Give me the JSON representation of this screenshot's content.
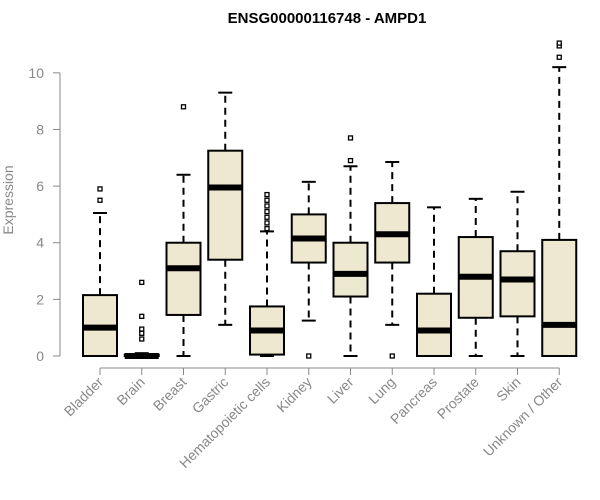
{
  "chart_data": {
    "type": "box",
    "title": "ENSG00000116748 - AMPD1",
    "ylabel": "Expression",
    "xlabel": "",
    "ylim": [
      0,
      11.3
    ],
    "yticks": [
      0,
      2,
      4,
      6,
      8,
      10
    ],
    "box_fill": "#efe8d0",
    "categories": [
      "Bladder",
      "Brain",
      "Breast",
      "Gastric",
      "Hematopoietic cells",
      "Kidney",
      "Liver",
      "Lung",
      "Pancreas",
      "Prostate",
      "Skin",
      "Unknown / Other"
    ],
    "boxes": [
      {
        "whisker_low": 0,
        "q1": 0,
        "median": 1.0,
        "q3": 2.15,
        "whisker_high": 5.05,
        "outliers": [
          5.5,
          5.9
        ]
      },
      {
        "whisker_low": 0,
        "q1": 0,
        "median": 0,
        "q3": 0.05,
        "whisker_high": 0.1,
        "outliers": [
          0.6,
          0.8,
          0.95,
          1.4,
          2.6
        ]
      },
      {
        "whisker_low": 0,
        "q1": 1.45,
        "median": 3.1,
        "q3": 4.0,
        "whisker_high": 6.4,
        "outliers": [
          8.8
        ]
      },
      {
        "whisker_low": 1.1,
        "q1": 3.4,
        "median": 5.95,
        "q3": 7.25,
        "whisker_high": 9.3,
        "outliers": []
      },
      {
        "whisker_low": 0,
        "q1": 0.05,
        "median": 0.9,
        "q3": 1.75,
        "whisker_high": 4.4,
        "outliers": [
          4.5,
          4.7,
          4.9,
          5.1,
          5.3,
          5.5,
          5.7
        ]
      },
      {
        "whisker_low": 1.25,
        "q1": 3.3,
        "median": 4.15,
        "q3": 5.0,
        "whisker_high": 6.15,
        "outliers": [
          0
        ]
      },
      {
        "whisker_low": 0,
        "q1": 2.1,
        "median": 2.9,
        "q3": 4.0,
        "whisker_high": 6.7,
        "outliers": [
          6.9,
          7.7
        ]
      },
      {
        "whisker_low": 1.1,
        "q1": 3.3,
        "median": 4.3,
        "q3": 5.4,
        "whisker_high": 6.85,
        "outliers": [
          0
        ]
      },
      {
        "whisker_low": 0,
        "q1": 0,
        "median": 0.9,
        "q3": 2.2,
        "whisker_high": 5.25,
        "outliers": []
      },
      {
        "whisker_low": 0,
        "q1": 1.35,
        "median": 2.8,
        "q3": 4.2,
        "whisker_high": 5.55,
        "outliers": []
      },
      {
        "whisker_low": 0,
        "q1": 1.4,
        "median": 2.7,
        "q3": 3.7,
        "whisker_high": 5.8,
        "outliers": []
      },
      {
        "whisker_low": 0,
        "q1": 0,
        "median": 1.1,
        "q3": 4.1,
        "whisker_high": 10.2,
        "outliers": [
          10.55,
          10.95,
          11.05
        ]
      }
    ]
  }
}
